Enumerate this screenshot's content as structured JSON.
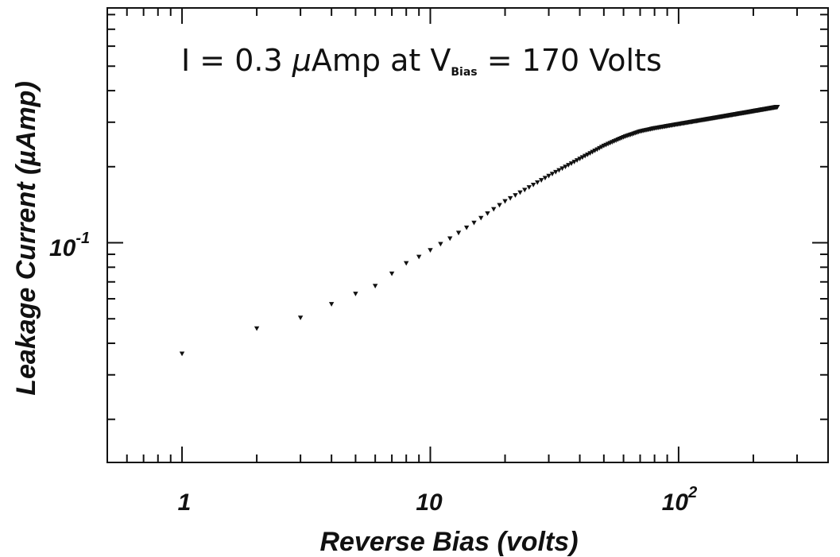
{
  "chart_data": {
    "type": "scatter",
    "xlabel": "Reverse Bias (volts)",
    "ylabel": "Leakage Current (µAmp)",
    "xscale": "log",
    "yscale": "log",
    "xlim": [
      0.5,
      400
    ],
    "ylim": [
      0.0135,
      0.85
    ],
    "grid": false,
    "marker": "triangle-down",
    "x_ticks": [
      {
        "base": "1",
        "exp": ""
      },
      {
        "base": "10",
        "exp": ""
      },
      {
        "base": "10",
        "exp": "2"
      }
    ],
    "y_ticks": [
      {
        "base": "10",
        "exp": "-1"
      }
    ],
    "annotation": {
      "text_before": "I = 0.3 ",
      "mu": "μ",
      "text_mid": "Amp at V",
      "subscript": "Bias",
      "text_after": " = 170 Volts"
    },
    "curve": {
      "points": [
        [
          1,
          0.0364
        ],
        [
          2,
          0.0458
        ],
        [
          3,
          0.0505
        ],
        [
          4,
          0.0572
        ],
        [
          5,
          0.0628
        ],
        [
          6,
          0.0675
        ],
        [
          7,
          0.0755
        ],
        [
          8,
          0.083
        ],
        [
          9,
          0.088
        ],
        [
          10,
          0.0935
        ],
        [
          12,
          0.104
        ],
        [
          15,
          0.12
        ],
        [
          20,
          0.146
        ],
        [
          30,
          0.184
        ],
        [
          40,
          0.215
        ],
        [
          50,
          0.242
        ],
        [
          60,
          0.262
        ],
        [
          70,
          0.276
        ],
        [
          80,
          0.284
        ],
        [
          100,
          0.295
        ],
        [
          150,
          0.316
        ],
        [
          200,
          0.332
        ],
        [
          250,
          0.345
        ]
      ]
    },
    "colors": {
      "marker": "#111111",
      "axis": "#111111",
      "background": "#ffffff"
    }
  }
}
